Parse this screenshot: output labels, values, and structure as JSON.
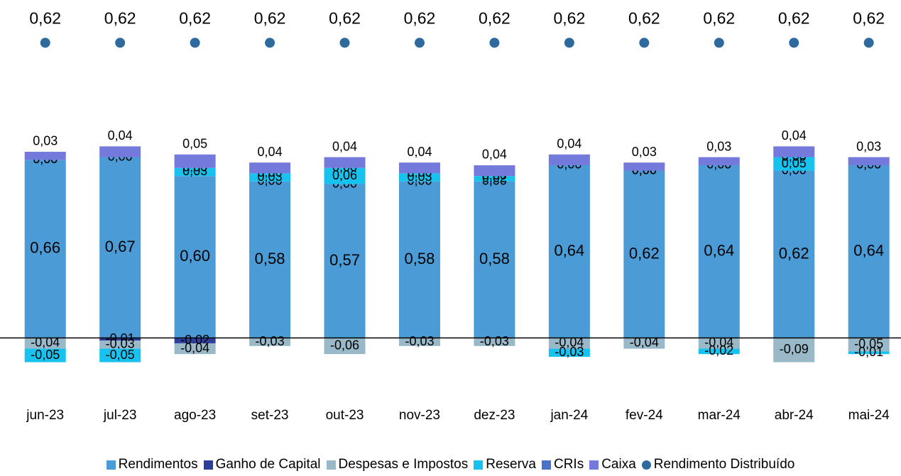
{
  "chart_data": {
    "type": "bar",
    "categories": [
      "jun-23",
      "jul-23",
      "ago-23",
      "set-23",
      "out-23",
      "nov-23",
      "dez-23",
      "jan-24",
      "fev-24",
      "mar-24",
      "abr-24",
      "mai-24"
    ],
    "stacked": true,
    "ylim": [
      -0.22,
      1.2
    ],
    "y2lim": [
      0,
      0.67
    ],
    "series": [
      {
        "name": "Rendimentos",
        "color": "#4a9bd6",
        "values": [
          0.66,
          0.67,
          0.6,
          0.58,
          0.57,
          0.58,
          0.58,
          0.64,
          0.62,
          0.64,
          0.62,
          0.64
        ],
        "value_labels": [
          "0,66",
          "0,67",
          "0,60",
          "0,58",
          "0,57",
          "0,58",
          "0,58",
          "0,64",
          "0,62",
          "0,64",
          "0,62",
          "0,64"
        ]
      },
      {
        "name": "Ganho de Capital",
        "color": "#2e3f9a",
        "values": [
          0,
          -0.01,
          -0.02,
          0,
          0,
          0,
          0,
          0,
          0,
          0,
          0,
          0
        ],
        "value_labels": [
          "0,00",
          "-0,01",
          "-0,02",
          "0,00",
          "0,00",
          "0,00",
          "0,00",
          null,
          "0,00",
          null,
          "0,00",
          null
        ]
      },
      {
        "name": "Despesas e Impostos",
        "color": "#99b9c9",
        "values": [
          -0.04,
          -0.03,
          -0.04,
          -0.03,
          -0.06,
          -0.03,
          -0.03,
          -0.04,
          -0.04,
          -0.04,
          -0.09,
          -0.05
        ],
        "value_labels": [
          "-0,04",
          "-0,03",
          "-0,04",
          "-0,03",
          "-0,06",
          "-0,03",
          "-0,03",
          "-0,04",
          "-0,04",
          "-0,04",
          "-0,09",
          "-0,05"
        ]
      },
      {
        "name": "Reserva",
        "color": "#17c3ee",
        "values": [
          -0.05,
          -0.05,
          0.03,
          0.03,
          0.06,
          0.03,
          0.02,
          -0.03,
          0,
          -0.02,
          0.05,
          -0.01
        ],
        "value_labels": [
          "-0,05",
          "-0,05",
          "0,03",
          "0,03",
          "0,06",
          "0,03",
          "0,02",
          "-0,03",
          "0,00",
          "-0,02",
          "0,05",
          "-0,01"
        ]
      },
      {
        "name": "CRIs",
        "color": "#4a72c8",
        "values": [
          0,
          0,
          0,
          0,
          0,
          0,
          0,
          0,
          0,
          0,
          0,
          0
        ],
        "value_labels": [
          "0,00",
          "0,00",
          "0,00",
          "0,00",
          "0,00",
          "0,00",
          "0,00",
          "0,00",
          "0,00",
          "0,00",
          "0,00",
          "0,00"
        ]
      },
      {
        "name": "Caixa",
        "color": "#7479dc",
        "values": [
          0.03,
          0.04,
          0.05,
          0.04,
          0.04,
          0.04,
          0.04,
          0.04,
          0.03,
          0.03,
          0.04,
          0.03
        ],
        "value_labels": [
          "0,03",
          "0,04",
          "0,05",
          "0,04",
          "0,04",
          "0,04",
          "0,04",
          "0,04",
          "0,03",
          "0,03",
          "0,04",
          "0,03"
        ]
      },
      {
        "name": "Rendimento Distribuído",
        "color": "#2e6a9e",
        "type": "scatter",
        "axis": "y2",
        "values": [
          0.62,
          0.62,
          0.62,
          0.62,
          0.62,
          0.62,
          0.62,
          0.62,
          0.62,
          0.62,
          0.62,
          0.62
        ],
        "value_labels": [
          "0,62",
          "0,62",
          "0,62",
          "0,62",
          "0,62",
          "0,62",
          "0,62",
          "0,62",
          "0,62",
          "0,62",
          "0,62",
          "0,62"
        ]
      }
    ]
  }
}
